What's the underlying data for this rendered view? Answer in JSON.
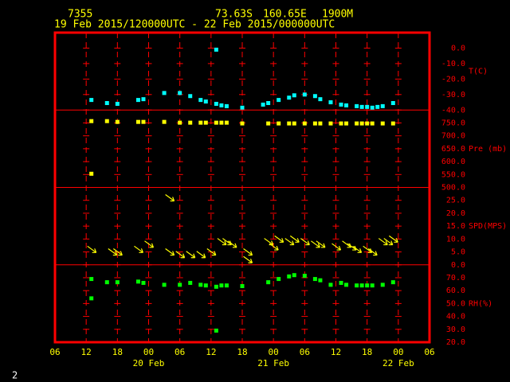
{
  "header": {
    "station": "7355",
    "latitude": "73.63S",
    "longitude": "160.65E",
    "elevation": "1900M",
    "period": "19 Feb 2015/120000UTC - 22 Feb 2015/000000UTC"
  },
  "page_number": "2",
  "chart_data": [
    {
      "type": "scatter",
      "y_label": "T(C)",
      "color": "#00ffff",
      "x": [
        7,
        10,
        12,
        16,
        17,
        21,
        24,
        26,
        28,
        29,
        31,
        31,
        32,
        33,
        36,
        40,
        41,
        43,
        45,
        46,
        48,
        50,
        51,
        53,
        55,
        56,
        58,
        59,
        60,
        61,
        62,
        63,
        65
      ],
      "values": [
        -33.5,
        -35.5,
        -36,
        -33.5,
        -33,
        -29,
        -29,
        -31,
        -33.5,
        -34.5,
        -36,
        -1,
        -37,
        -37.5,
        -38.5,
        -36.5,
        -35.5,
        -33.5,
        -32,
        -30.5,
        -30,
        -31,
        -33,
        -35,
        -36.5,
        -37,
        -37.5,
        -38,
        -38,
        -38.5,
        -38,
        -37.5,
        -35.5
      ],
      "ylim": [
        -40,
        10
      ],
      "yticks": [
        {
          "value": 0,
          "label": "0.0"
        },
        {
          "value": -10,
          "label": "-10.0"
        },
        {
          "value": -20,
          "label": "-20.0"
        },
        {
          "value": -30,
          "label": "-30.0"
        },
        {
          "value": -40,
          "label": "-40.0"
        }
      ]
    },
    {
      "type": "scatter",
      "y_label": "Pre (mb)",
      "color": "#ffff00",
      "x": [
        7,
        7,
        10,
        12,
        16,
        17,
        21,
        24,
        26,
        28,
        29,
        31,
        32,
        33,
        36,
        41,
        43,
        45,
        46,
        48,
        50,
        51,
        53,
        55,
        56,
        58,
        59,
        60,
        61,
        63,
        65
      ],
      "values": [
        757,
        553,
        757,
        754,
        754,
        754,
        754,
        751,
        751,
        751,
        751,
        751,
        751,
        751,
        748,
        748,
        748,
        748,
        748,
        748,
        748,
        748,
        748,
        748,
        748,
        748,
        748,
        748,
        748,
        748,
        748
      ],
      "ylim": [
        500,
        800
      ],
      "yticks": [
        {
          "value": 750,
          "label": "750.0"
        },
        {
          "value": 700,
          "label": "700.0"
        },
        {
          "value": 650,
          "label": "650.0"
        },
        {
          "value": 600,
          "label": "600.0"
        },
        {
          "value": 550,
          "label": "550.0"
        },
        {
          "value": 500,
          "label": "500.0"
        }
      ]
    },
    {
      "type": "wind",
      "y_label": "SPD(MPS)",
      "color": "#ffff00",
      "x": [
        7,
        11,
        12,
        16,
        18,
        22,
        22,
        24,
        26,
        28,
        30,
        32,
        33,
        34,
        37,
        37,
        41,
        42,
        43,
        45,
        46,
        48,
        50,
        51,
        54,
        56,
        57,
        58,
        60,
        61,
        63,
        64,
        65
      ],
      "values": [
        6,
        5,
        5,
        6,
        8,
        26,
        5,
        4,
        4,
        4,
        5,
        9,
        9,
        8,
        5,
        2,
        9,
        7,
        10,
        9,
        10,
        9,
        8,
        8,
        7,
        8,
        7,
        6,
        6,
        5,
        9,
        9,
        10
      ],
      "ylim": [
        0,
        30
      ],
      "yticks": [
        {
          "value": 25,
          "label": "25.0"
        },
        {
          "value": 20,
          "label": "20.0"
        },
        {
          "value": 15,
          "label": "15.0"
        },
        {
          "value": 10,
          "label": "10.0"
        },
        {
          "value": 5,
          "label": "5.0"
        },
        {
          "value": 0,
          "label": "0.0"
        }
      ]
    },
    {
      "type": "scatter",
      "y_label": "RH(%)",
      "color": "#00ff00",
      "x": [
        7,
        7,
        10,
        12,
        16,
        17,
        21,
        24,
        26,
        28,
        29,
        31,
        31,
        32,
        33,
        36,
        41,
        43,
        45,
        46,
        48,
        50,
        51,
        53,
        55,
        56,
        58,
        59,
        60,
        61,
        63,
        65
      ],
      "values": [
        69,
        54,
        66.5,
        66.5,
        67,
        66,
        64.5,
        64.5,
        66,
        64.5,
        64,
        63,
        29,
        64,
        64,
        63.5,
        66.5,
        69,
        71,
        72,
        71.5,
        69,
        68,
        64.5,
        66,
        64.5,
        64,
        64,
        64,
        64,
        64.5,
        66.5
      ],
      "ylim": [
        20,
        80
      ],
      "yticks": [
        {
          "value": 70,
          "label": "70.0"
        },
        {
          "value": 60,
          "label": "60.0"
        },
        {
          "value": 50,
          "label": "50.0"
        },
        {
          "value": 40,
          "label": "40.0"
        },
        {
          "value": 30,
          "label": "30.0"
        },
        {
          "value": 20,
          "label": "20.0"
        }
      ],
      "xlim": [
        0,
        72
      ],
      "xticks": [
        {
          "value": 0,
          "label": "06"
        },
        {
          "value": 6,
          "label": "12"
        },
        {
          "value": 12,
          "label": "18"
        },
        {
          "value": 18,
          "label": "00"
        },
        {
          "value": 24,
          "label": "06"
        },
        {
          "value": 30,
          "label": "12"
        },
        {
          "value": 36,
          "label": "18"
        },
        {
          "value": 42,
          "label": "00"
        },
        {
          "value": 48,
          "label": "06"
        },
        {
          "value": 54,
          "label": "12"
        },
        {
          "value": 60,
          "label": "18"
        },
        {
          "value": 66,
          "label": "00"
        },
        {
          "value": 72,
          "label": "06"
        }
      ],
      "date_labels": [
        {
          "value": 18,
          "label": "20 Feb"
        },
        {
          "value": 42,
          "label": "21 Feb"
        },
        {
          "value": 66,
          "label": "22 Feb"
        }
      ]
    }
  ]
}
